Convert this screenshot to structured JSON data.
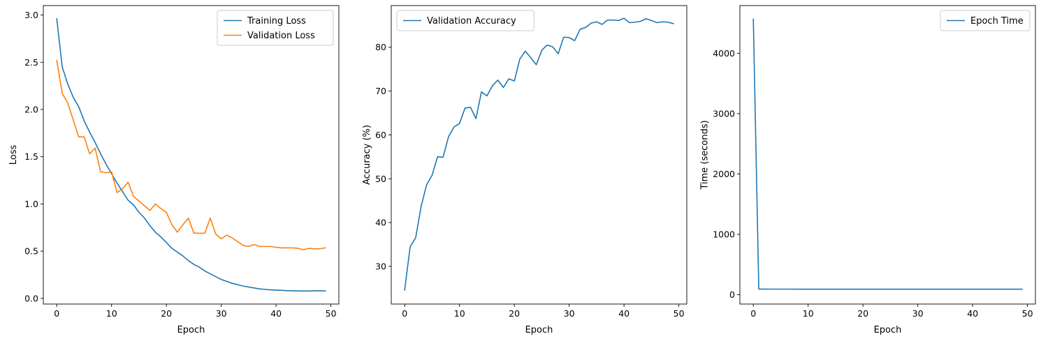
{
  "colors": {
    "blue": "#1f77b4",
    "orange": "#ff7f0e",
    "axis": "#000000",
    "legend_border": "#cccccc"
  },
  "chart_data": [
    {
      "type": "line",
      "xlabel": "Epoch",
      "ylabel": "Loss",
      "xlim": [
        -2.45,
        51.45
      ],
      "ylim": [
        -0.06,
        3.1
      ],
      "xticks": [
        0,
        10,
        20,
        30,
        40,
        50
      ],
      "yticks": [
        0.0,
        0.5,
        1.0,
        1.5,
        2.0,
        2.5,
        3.0
      ],
      "ytick_labels": [
        "0.0",
        "0.5",
        "1.0",
        "1.5",
        "2.0",
        "2.5",
        "3.0"
      ],
      "legend": "upper right",
      "grid": false,
      "series": [
        {
          "name": "Training Loss",
          "color": "#1f77b4",
          "x": [
            0,
            1,
            2,
            3,
            4,
            5,
            6,
            7,
            8,
            9,
            10,
            11,
            12,
            13,
            14,
            15,
            16,
            17,
            18,
            19,
            20,
            21,
            22,
            23,
            24,
            25,
            26,
            27,
            28,
            29,
            30,
            31,
            32,
            33,
            34,
            35,
            36,
            37,
            38,
            39,
            40,
            41,
            42,
            43,
            44,
            45,
            46,
            47,
            48,
            49
          ],
          "values": [
            2.96,
            2.45,
            2.27,
            2.13,
            2.03,
            1.88,
            1.76,
            1.65,
            1.53,
            1.42,
            1.32,
            1.22,
            1.13,
            1.04,
            0.99,
            0.91,
            0.85,
            0.77,
            0.7,
            0.65,
            0.59,
            0.53,
            0.49,
            0.45,
            0.4,
            0.36,
            0.33,
            0.29,
            0.26,
            0.23,
            0.2,
            0.18,
            0.16,
            0.145,
            0.13,
            0.12,
            0.11,
            0.1,
            0.095,
            0.09,
            0.088,
            0.085,
            0.082,
            0.08,
            0.079,
            0.078,
            0.078,
            0.08,
            0.08,
            0.08
          ]
        },
        {
          "name": "Validation Loss",
          "color": "#ff7f0e",
          "x": [
            0,
            1,
            2,
            3,
            4,
            5,
            6,
            7,
            8,
            9,
            10,
            11,
            12,
            13,
            14,
            15,
            16,
            17,
            18,
            19,
            20,
            21,
            22,
            23,
            24,
            25,
            26,
            27,
            28,
            29,
            30,
            31,
            32,
            33,
            34,
            35,
            36,
            37,
            38,
            39,
            40,
            41,
            42,
            43,
            44,
            45,
            46,
            47,
            48,
            49
          ],
          "values": [
            2.52,
            2.17,
            2.07,
            1.89,
            1.71,
            1.71,
            1.53,
            1.59,
            1.34,
            1.33,
            1.34,
            1.12,
            1.16,
            1.23,
            1.08,
            1.03,
            0.98,
            0.93,
            1.0,
            0.95,
            0.91,
            0.78,
            0.7,
            0.78,
            0.85,
            0.69,
            0.69,
            0.69,
            0.85,
            0.68,
            0.63,
            0.67,
            0.64,
            0.6,
            0.56,
            0.55,
            0.57,
            0.55,
            0.55,
            0.55,
            0.54,
            0.535,
            0.535,
            0.535,
            0.53,
            0.515,
            0.53,
            0.525,
            0.525,
            0.535
          ]
        }
      ]
    },
    {
      "type": "line",
      "xlabel": "Epoch",
      "ylabel": "Accuracy (%)",
      "xlim": [
        -2.45,
        51.45
      ],
      "ylim": [
        21.4,
        89.5
      ],
      "xticks": [
        0,
        10,
        20,
        30,
        40,
        50
      ],
      "yticks": [
        30,
        40,
        50,
        60,
        70,
        80
      ],
      "ytick_labels": [
        "30",
        "40",
        "50",
        "60",
        "70",
        "80"
      ],
      "legend": "upper left",
      "grid": false,
      "series": [
        {
          "name": "Validation Accuracy",
          "color": "#1f77b4",
          "x": [
            0,
            1,
            2,
            3,
            4,
            5,
            6,
            7,
            8,
            9,
            10,
            11,
            12,
            13,
            14,
            15,
            16,
            17,
            18,
            19,
            20,
            21,
            22,
            23,
            24,
            25,
            26,
            27,
            28,
            29,
            30,
            31,
            32,
            33,
            34,
            35,
            36,
            37,
            38,
            39,
            40,
            41,
            42,
            43,
            44,
            45,
            46,
            47,
            48,
            49
          ],
          "values": [
            24.6,
            34.5,
            36.5,
            43.7,
            48.6,
            50.8,
            55.0,
            54.9,
            59.6,
            61.8,
            62.6,
            66.1,
            66.3,
            63.7,
            69.8,
            68.9,
            71.2,
            72.5,
            70.8,
            72.8,
            72.3,
            77.3,
            79.1,
            77.6,
            76.0,
            79.3,
            80.5,
            80.1,
            78.5,
            82.3,
            82.2,
            81.5,
            84.1,
            84.5,
            85.5,
            85.8,
            85.2,
            86.2,
            86.2,
            86.1,
            86.6,
            85.6,
            85.7,
            85.9,
            86.5,
            86.1,
            85.6,
            85.8,
            85.7,
            85.4
          ]
        }
      ]
    },
    {
      "type": "line",
      "xlabel": "Epoch",
      "ylabel": "Time (seconds)",
      "xlim": [
        -2.45,
        51.45
      ],
      "ylim": [
        -155,
        4790
      ],
      "xticks": [
        0,
        10,
        20,
        30,
        40,
        50
      ],
      "yticks": [
        0,
        1000,
        2000,
        3000,
        4000
      ],
      "ytick_labels": [
        "0",
        "1000",
        "2000",
        "3000",
        "4000"
      ],
      "legend": "upper right",
      "grid": false,
      "series": [
        {
          "name": "Epoch Time",
          "color": "#1f77b4",
          "x": [
            0,
            1,
            2,
            3,
            4,
            5,
            6,
            7,
            8,
            9,
            10,
            11,
            12,
            13,
            14,
            15,
            16,
            17,
            18,
            19,
            20,
            21,
            22,
            23,
            24,
            25,
            26,
            27,
            28,
            29,
            30,
            31,
            32,
            33,
            34,
            35,
            36,
            37,
            38,
            39,
            40,
            41,
            42,
            43,
            44,
            45,
            46,
            47,
            48,
            49
          ],
          "values": [
            4565,
            93,
            93,
            92,
            92,
            92,
            92,
            92,
            91,
            91,
            91,
            91,
            91,
            91,
            91,
            91,
            91,
            91,
            91,
            91,
            91,
            91,
            91,
            91,
            91,
            91,
            91,
            91,
            91,
            91,
            91,
            91,
            91,
            91,
            91,
            91,
            91,
            91,
            91,
            91,
            91,
            91,
            91,
            91,
            91,
            91,
            91,
            91,
            91,
            91
          ]
        }
      ]
    }
  ]
}
